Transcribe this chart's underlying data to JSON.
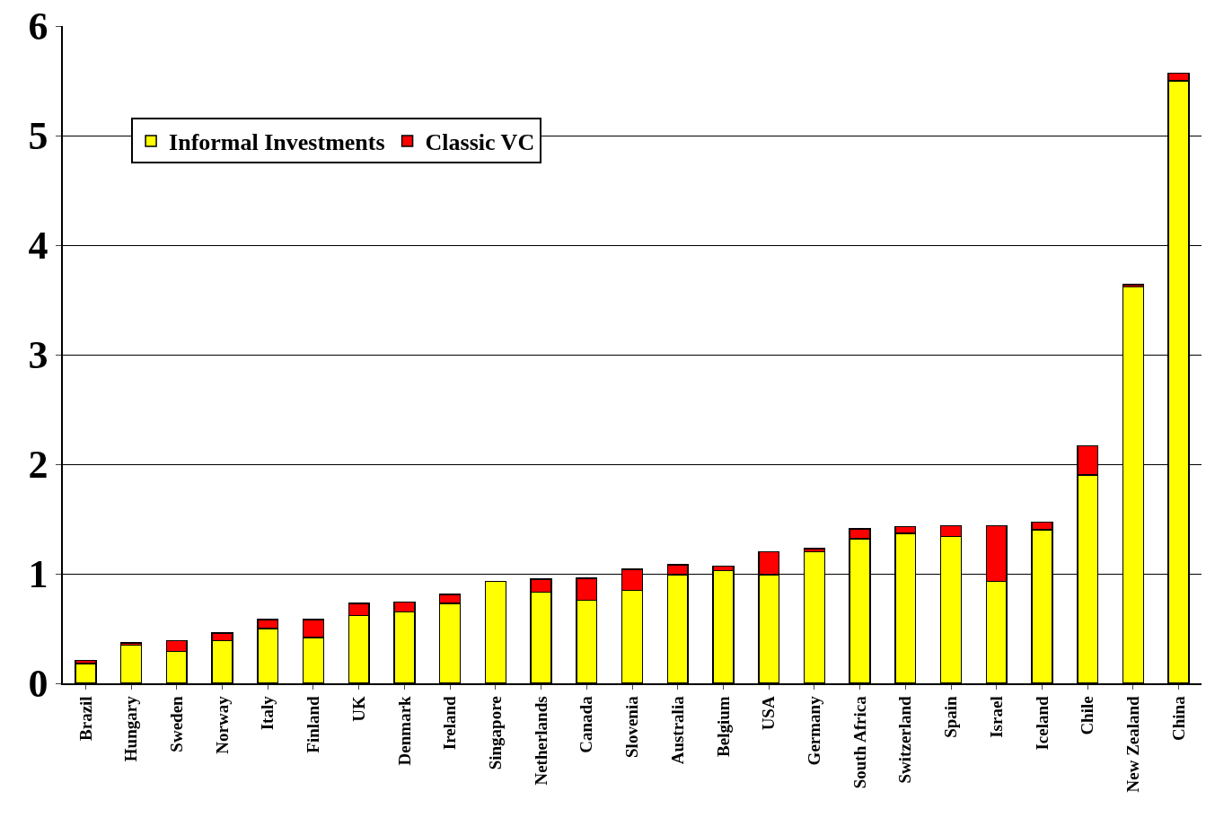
{
  "chart_data": {
    "type": "bar",
    "stacked": true,
    "categories": [
      "Brazil",
      "Hungary",
      "Sweden",
      "Norway",
      "Italy",
      "Finland",
      "UK",
      "Denmark",
      "Ireland",
      "Singapore",
      "Netherlands",
      "Canada",
      "Slovenia",
      "Australia",
      "Belgium",
      "USA",
      "Germany",
      "South Africa",
      "Switzerland",
      "Spain",
      "Israel",
      "Iceland",
      "Chile",
      "New Zealand",
      "China"
    ],
    "series": [
      {
        "name": "Informal Investments",
        "color": "#ffff00",
        "values": [
          0.18,
          0.35,
          0.29,
          0.39,
          0.5,
          0.42,
          0.62,
          0.65,
          0.73,
          0.93,
          0.83,
          0.76,
          0.85,
          0.99,
          1.03,
          0.99,
          1.2,
          1.32,
          1.37,
          1.34,
          0.93,
          1.4,
          1.9,
          3.62,
          5.5
        ]
      },
      {
        "name": "Classic VC",
        "color": "#ff0000",
        "values": [
          0.03,
          0.02,
          0.1,
          0.07,
          0.08,
          0.16,
          0.11,
          0.09,
          0.08,
          null,
          0.12,
          0.2,
          0.19,
          0.09,
          0.04,
          0.21,
          0.03,
          0.09,
          0.06,
          0.1,
          0.51,
          0.07,
          0.27,
          0.02,
          0.07
        ]
      }
    ],
    "ylim": [
      0,
      6
    ],
    "yticks": [
      0,
      1,
      2,
      3,
      4,
      5,
      6
    ],
    "grid": "y",
    "legend": "top left"
  }
}
